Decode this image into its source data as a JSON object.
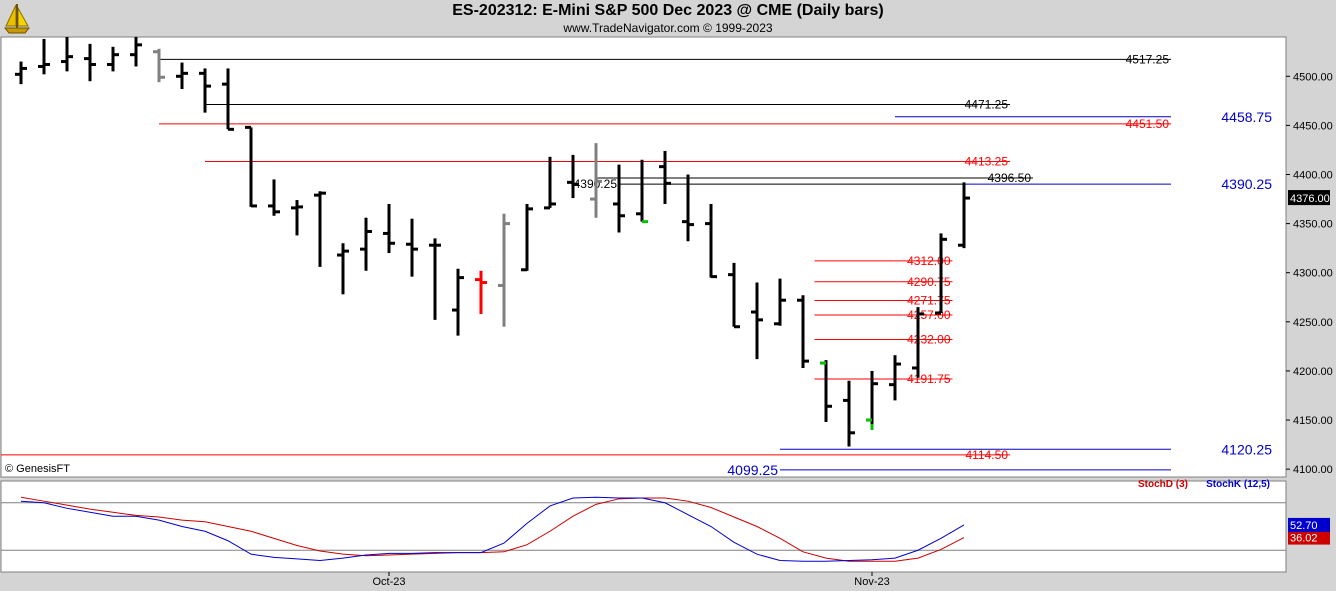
{
  "header": {
    "title": "ES-202312:  E-Mini S&P 500 Dec 2023 @ CME  (Daily bars)",
    "subtitle": "www.TradeNavigator.com © 1999-2023",
    "logo_icon": "sailboat-logo-icon"
  },
  "watermark": "© GenesisFT",
  "chart_data": [
    {
      "type": "ohlc-bar",
      "ylim": [
        4092,
        4540
      ],
      "y_ticks": [
        "4500.00",
        "4450.00",
        "4400.00",
        "4350.00",
        "4300.00",
        "4250.00",
        "4200.00",
        "4150.00",
        "4100.00"
      ],
      "x_labels": [
        {
          "label": "Oct-23",
          "bar": 16
        },
        {
          "label": "Nov-23",
          "bar": 37
        }
      ],
      "last_price_label": "4376.00",
      "bar_colors": {
        "normal": "#000000",
        "inside": "#808080",
        "reversal": "#ff0000",
        "close_highlight": "#00c000"
      },
      "bars": [
        {
          "o": 4502,
          "h": 4515,
          "l": 4492,
          "c": 4508
        },
        {
          "o": 4510,
          "h": 4538,
          "l": 4502,
          "c": 4512
        },
        {
          "o": 4515,
          "h": 4540,
          "l": 4505,
          "c": 4520
        },
        {
          "o": 4518,
          "h": 4533,
          "l": 4495,
          "c": 4512
        },
        {
          "o": 4512,
          "h": 4530,
          "l": 4505,
          "c": 4522
        },
        {
          "o": 4522,
          "h": 4540,
          "l": 4510,
          "c": 4532
        },
        {
          "o": 4525,
          "h": 4528,
          "l": 4494,
          "c": 4499,
          "color": "inside"
        },
        {
          "o": 4500,
          "h": 4514,
          "l": 4487,
          "c": 4503
        },
        {
          "o": 4503,
          "h": 4508,
          "l": 4463,
          "c": 4490
        },
        {
          "o": 4492,
          "h": 4508,
          "l": 4446,
          "c": 4446
        },
        {
          "o": 4448,
          "h": 4448,
          "l": 4367,
          "c": 4368
        },
        {
          "o": 4368,
          "h": 4395,
          "l": 4358,
          "c": 4362
        },
        {
          "o": 4366,
          "h": 4374,
          "l": 4338,
          "c": 4367
        },
        {
          "o": 4379,
          "h": 4383,
          "l": 4306,
          "c": 4381
        },
        {
          "o": 4318,
          "h": 4330,
          "l": 4278,
          "c": 4322
        },
        {
          "o": 4324,
          "h": 4356,
          "l": 4302,
          "c": 4342
        },
        {
          "o": 4340,
          "h": 4370,
          "l": 4320,
          "c": 4330
        },
        {
          "o": 4329,
          "h": 4355,
          "l": 4296,
          "c": 4324
        },
        {
          "o": 4328,
          "h": 4335,
          "l": 4252,
          "c": 4328
        },
        {
          "o": 4262,
          "h": 4304,
          "l": 4236,
          "c": 4295
        },
        {
          "o": 4293,
          "h": 4302,
          "l": 4258,
          "c": 4290,
          "color": "reversal"
        },
        {
          "o": 4287,
          "h": 4360,
          "l": 4245,
          "c": 4350,
          "color": "inside"
        },
        {
          "o": 4303,
          "h": 4370,
          "l": 4302,
          "c": 4365
        },
        {
          "o": 4366,
          "h": 4418,
          "l": 4366,
          "c": 4370
        },
        {
          "o": 4392,
          "h": 4420,
          "l": 4376,
          "c": 4390
        },
        {
          "o": 4375,
          "h": 4432,
          "l": 4356,
          "c": 4393,
          "color": "inside"
        },
        {
          "o": 4370,
          "h": 4410,
          "l": 4341,
          "c": 4358
        },
        {
          "o": 4360,
          "h": 4415,
          "l": 4352,
          "c": 4352,
          "close_color": "close_highlight"
        },
        {
          "o": 4408,
          "h": 4424,
          "l": 4370,
          "c": 4391
        },
        {
          "o": 4352,
          "h": 4400,
          "l": 4332,
          "c": 4349
        },
        {
          "o": 4350,
          "h": 4370,
          "l": 4295,
          "c": 4296
        },
        {
          "o": 4298,
          "h": 4310,
          "l": 4245,
          "c": 4245
        },
        {
          "o": 4260,
          "h": 4290,
          "l": 4212,
          "c": 4252
        },
        {
          "o": 4248,
          "h": 4294,
          "l": 4246,
          "c": 4272
        },
        {
          "o": 4272,
          "h": 4277,
          "l": 4203,
          "c": 4210
        },
        {
          "o": 4208,
          "h": 4211,
          "l": 4148,
          "c": 4164,
          "open_color": "close_highlight"
        },
        {
          "o": 4170,
          "h": 4190,
          "l": 4123,
          "c": 4137
        },
        {
          "o": 4150,
          "h": 4200,
          "l": 4140,
          "c": 4187,
          "open_color": "close_highlight",
          "low_color": "close_highlight"
        },
        {
          "o": 4186,
          "h": 4216,
          "l": 4170,
          "c": 4207
        },
        {
          "o": 4203,
          "h": 4265,
          "l": 4193,
          "c": 4258
        },
        {
          "o": 4259,
          "h": 4340,
          "l": 4259,
          "c": 4334
        },
        {
          "o": 4328,
          "h": 4392,
          "l": 4325,
          "c": 4376
        }
      ],
      "levels": [
        {
          "value": 4517.25,
          "label": "4517.25",
          "color": "#000000",
          "from_bar": 6,
          "to_bar": 50,
          "size": "small"
        },
        {
          "value": 4471.25,
          "label": "4471.25",
          "color": "#000000",
          "from_bar": 8,
          "to_bar": 43,
          "size": "small"
        },
        {
          "value": 4458.75,
          "label": "4458.75",
          "color": "#0000cc",
          "from_bar": 38,
          "to_bar": 50,
          "size": "large"
        },
        {
          "value": 4451.5,
          "label": "4451.50",
          "color": "#ff0000",
          "from_bar": 6,
          "to_bar": 50,
          "size": "small"
        },
        {
          "value": 4413.25,
          "label": "4413.25",
          "color": "#ff0000",
          "from_bar": 8,
          "to_bar": 43,
          "size": "small"
        },
        {
          "value": 4396.5,
          "label": "4396.50",
          "color": "#000000",
          "from_bar": 25,
          "to_bar": 44,
          "size": "small"
        },
        {
          "value": 4390.25,
          "label": "4390.25",
          "color": "#000000",
          "from_bar": 26,
          "to_bar": 41,
          "size": "small",
          "label_left": true
        },
        {
          "value": 4390.25,
          "label": "4390.25",
          "color": "#0000cc",
          "from_bar": 41,
          "to_bar": 50,
          "size": "large"
        },
        {
          "value": 4312.0,
          "label": "4312.00",
          "color": "#ff0000",
          "from_bar": 34.5,
          "to_bar": 40.5,
          "size": "small"
        },
        {
          "value": 4290.75,
          "label": "4290.75",
          "color": "#ff0000",
          "from_bar": 34.5,
          "to_bar": 40.5,
          "size": "small"
        },
        {
          "value": 4271.75,
          "label": "4271.75",
          "color": "#ff0000",
          "from_bar": 34.5,
          "to_bar": 40.5,
          "size": "small"
        },
        {
          "value": 4257.0,
          "label": "4257.00",
          "color": "#ff0000",
          "from_bar": 34.5,
          "to_bar": 40.5,
          "size": "small"
        },
        {
          "value": 4232.0,
          "label": "4232.00",
          "color": "#ff0000",
          "from_bar": 34.5,
          "to_bar": 40.5,
          "size": "small"
        },
        {
          "value": 4191.75,
          "label": "4191.75",
          "color": "#ff0000",
          "from_bar": 34.5,
          "to_bar": 40.5,
          "size": "small"
        },
        {
          "value": 4120.25,
          "label": "4120.25",
          "color": "#0000cc",
          "from_bar": 33,
          "to_bar": 50,
          "size": "large"
        },
        {
          "value": 4114.5,
          "label": "4114.50",
          "color": "#ff0000",
          "from_bar": -1,
          "to_bar": 43,
          "size": "small"
        },
        {
          "value": 4099.25,
          "label": "4099.25",
          "color": "#0000cc",
          "from_bar": 33,
          "to_bar": 50,
          "size": "large",
          "label_left": true
        }
      ]
    },
    {
      "type": "line",
      "ylim": [
        -5,
        105
      ],
      "reference_lines": [
        80,
        20
      ],
      "series": [
        {
          "name": "StochD (3)",
          "color": "#cc0000",
          "last_label": "36.02",
          "values": [
            87,
            82,
            77,
            72,
            68,
            64,
            62,
            58,
            56,
            50,
            44,
            35,
            26,
            19,
            15,
            13,
            14,
            15,
            16,
            17,
            17,
            18,
            27,
            44,
            63,
            78,
            85,
            86,
            86,
            82,
            74,
            62,
            50,
            35,
            18,
            10,
            6,
            6,
            6,
            10,
            21,
            36
          ]
        },
        {
          "name": "StochK (12,5)",
          "color": "#0000cc",
          "last_label": "52.70",
          "values": [
            82,
            80,
            73,
            68,
            63,
            63,
            58,
            50,
            44,
            32,
            15,
            11,
            9,
            7,
            10,
            14,
            16,
            16,
            17,
            17,
            17,
            29,
            54,
            76,
            86,
            87,
            86,
            86,
            80,
            65,
            50,
            30,
            15,
            7,
            6,
            6,
            7,
            8,
            10,
            20,
            35,
            52
          ]
        }
      ],
      "legend_position": "top-right"
    }
  ]
}
